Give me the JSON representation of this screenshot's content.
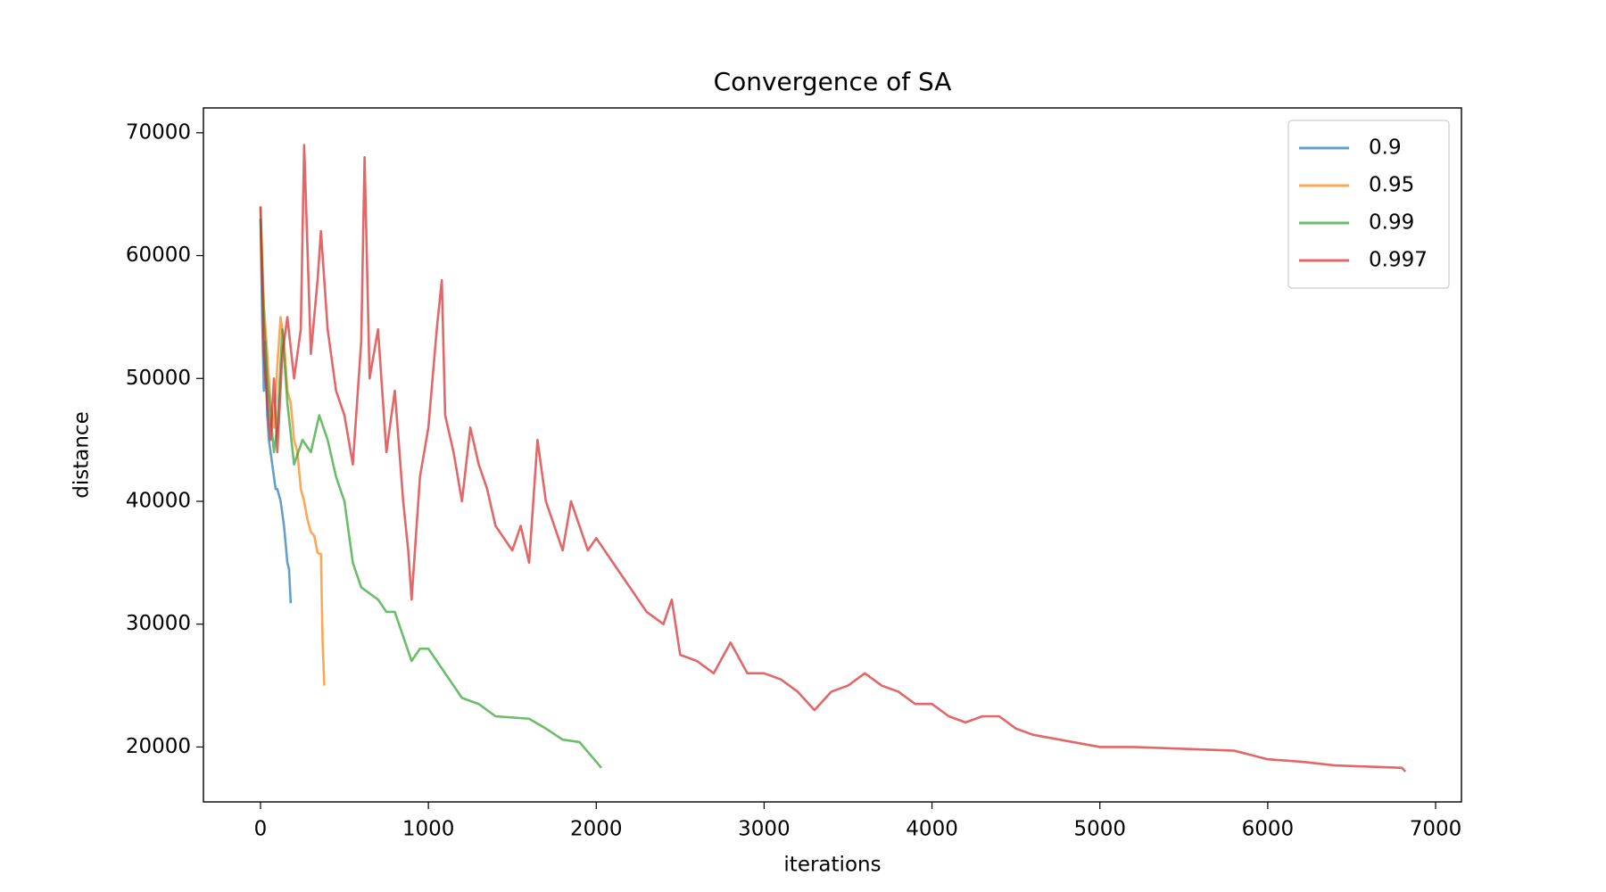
{
  "chart_data": {
    "type": "line",
    "title": "Convergence of SA",
    "x_label": "iterations",
    "y_label": "distance",
    "xlim": [
      -340,
      7154
    ],
    "ylim": [
      15530,
      72020
    ],
    "xticks": [
      0,
      1000,
      2000,
      3000,
      4000,
      5000,
      6000,
      7000
    ],
    "yticks": [
      20000,
      30000,
      40000,
      50000,
      60000,
      70000
    ],
    "grid": false,
    "legend": "upper right",
    "series": [
      {
        "name": "0.9",
        "color": "#1f77b4",
        "x": [
          0,
          10,
          20,
          30,
          40,
          50,
          60,
          70,
          80,
          90,
          100,
          120,
          140,
          160,
          170,
          180
        ],
        "values": [
          63000,
          55000,
          49000,
          53000,
          47000,
          45000,
          44000,
          43000,
          42000,
          41000,
          41000,
          40000,
          38000,
          35000,
          34500,
          31700
        ]
      },
      {
        "name": "0.95",
        "color": "#ff7f0e",
        "x": [
          0,
          20,
          40,
          60,
          80,
          100,
          120,
          140,
          160,
          180,
          200,
          220,
          240,
          260,
          280,
          300,
          320,
          340,
          360,
          370,
          380
        ],
        "values": [
          64000,
          56000,
          52000,
          48000,
          46000,
          51000,
          55000,
          53000,
          49000,
          48000,
          45000,
          44000,
          41000,
          40000,
          38500,
          37500,
          37200,
          35800,
          35700,
          28500,
          25000
        ]
      },
      {
        "name": "0.99",
        "color": "#2ca02c",
        "x": [
          0,
          20,
          40,
          60,
          80,
          100,
          130,
          160,
          200,
          250,
          300,
          350,
          400,
          450,
          500,
          550,
          600,
          650,
          700,
          750,
          800,
          850,
          900,
          950,
          1000,
          1050,
          1100,
          1200,
          1300,
          1400,
          1500,
          1600,
          1700,
          1800,
          1900,
          2000,
          2030
        ],
        "values": [
          63000,
          55000,
          50000,
          47000,
          44000,
          46000,
          54000,
          48000,
          43000,
          45000,
          44000,
          47000,
          45000,
          42000,
          40000,
          35000,
          33000,
          32500,
          32000,
          31000,
          31000,
          29000,
          27000,
          28000,
          28000,
          27000,
          26000,
          24000,
          23500,
          22500,
          22400,
          22300,
          21500,
          20600,
          20400,
          18800,
          18300
        ]
      },
      {
        "name": "0.997",
        "color": "#d62728",
        "x": [
          0,
          20,
          40,
          60,
          80,
          100,
          130,
          160,
          200,
          240,
          260,
          300,
          340,
          360,
          400,
          450,
          500,
          550,
          600,
          620,
          650,
          700,
          750,
          800,
          850,
          880,
          900,
          950,
          1000,
          1050,
          1080,
          1100,
          1150,
          1200,
          1250,
          1300,
          1350,
          1400,
          1450,
          1500,
          1550,
          1600,
          1650,
          1700,
          1750,
          1800,
          1850,
          1900,
          1950,
          2000,
          2100,
          2200,
          2300,
          2400,
          2450,
          2500,
          2600,
          2700,
          2800,
          2900,
          3000,
          3100,
          3200,
          3300,
          3400,
          3500,
          3600,
          3700,
          3800,
          3900,
          4000,
          4100,
          4200,
          4300,
          4400,
          4500,
          4600,
          4800,
          5000,
          5200,
          5400,
          5600,
          5800,
          6000,
          6200,
          6400,
          6600,
          6800,
          6820
        ],
        "values": [
          64000,
          52000,
          48000,
          45000,
          50000,
          44000,
          52000,
          55000,
          50000,
          54000,
          69000,
          52000,
          58000,
          62000,
          54000,
          49000,
          47000,
          43000,
          53000,
          68000,
          50000,
          54000,
          44000,
          49000,
          40000,
          36000,
          32000,
          42000,
          46000,
          54000,
          58000,
          47000,
          44000,
          40000,
          46000,
          43000,
          41000,
          38000,
          37000,
          36000,
          38000,
          35000,
          45000,
          40000,
          38000,
          36000,
          40000,
          38000,
          36000,
          37000,
          35000,
          33000,
          31000,
          30000,
          32000,
          27500,
          27000,
          26000,
          28500,
          26000,
          26000,
          25500,
          24500,
          23000,
          24500,
          25000,
          26000,
          25000,
          24500,
          23500,
          23500,
          22500,
          22000,
          22500,
          22500,
          21500,
          21000,
          20500,
          20000,
          20000,
          19900,
          19800,
          19700,
          19000,
          18800,
          18500,
          18400,
          18300,
          18000
        ]
      }
    ]
  }
}
